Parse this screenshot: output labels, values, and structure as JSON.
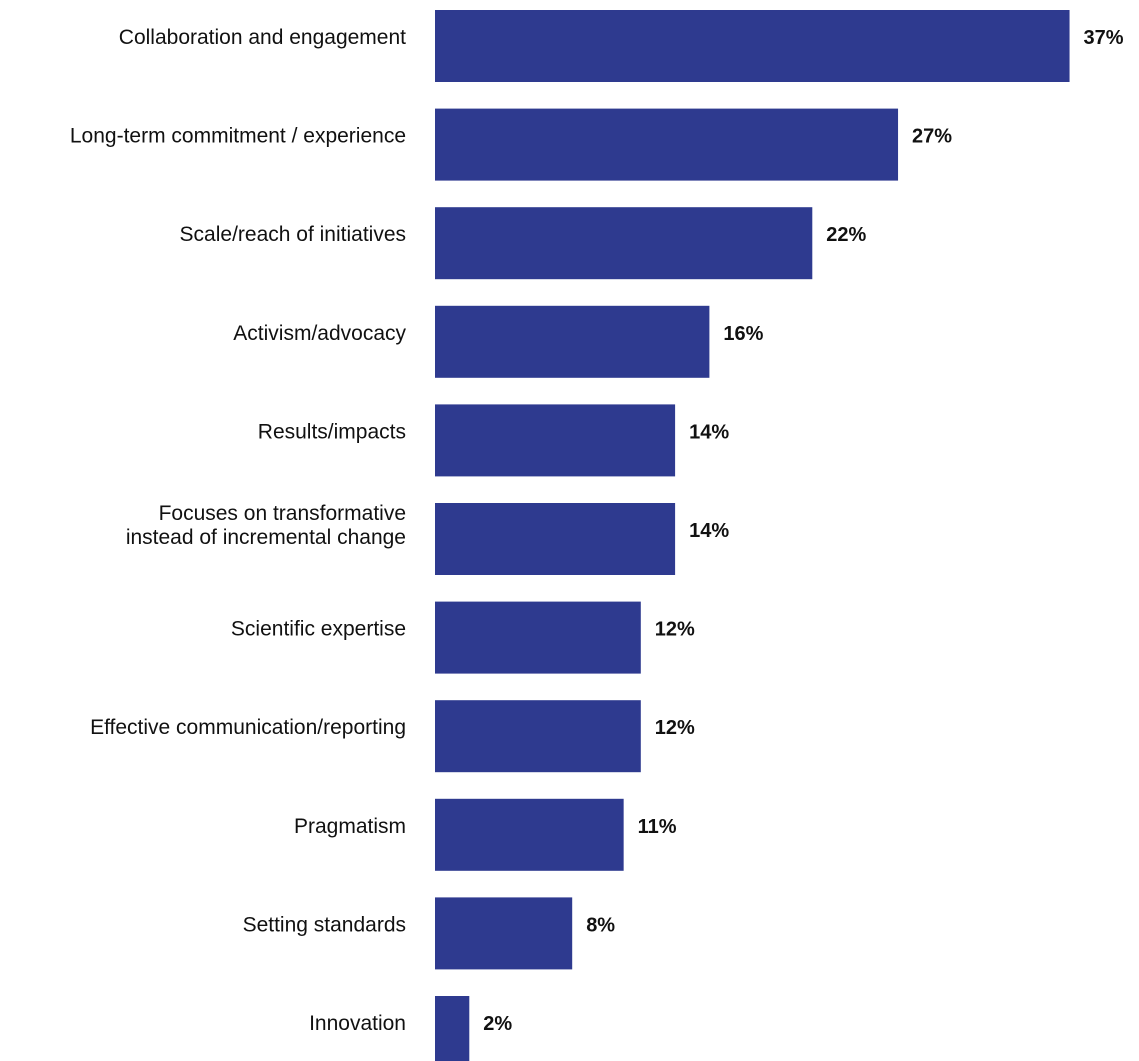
{
  "chart_data": {
    "type": "bar",
    "orientation": "horizontal",
    "categories": [
      [
        "Collaboration and engagement"
      ],
      [
        "Long-term commitment / experience"
      ],
      [
        "Scale/reach of initiatives"
      ],
      [
        "Activism/advocacy"
      ],
      [
        "Results/impacts"
      ],
      [
        "Focuses on transformative",
        "instead of incremental change"
      ],
      [
        "Scientific expertise"
      ],
      [
        "Effective communication/reporting"
      ],
      [
        "Pragmatism"
      ],
      [
        "Setting standards"
      ],
      [
        "Innovation"
      ]
    ],
    "values": [
      37,
      27,
      22,
      16,
      14,
      14,
      12,
      12,
      11,
      8,
      2
    ],
    "value_labels": [
      "37%",
      "27%",
      "22%",
      "16%",
      "14%",
      "14%",
      "12%",
      "12%",
      "11%",
      "8%",
      "2%"
    ],
    "title": "",
    "xlabel": "",
    "ylabel": "",
    "grid": false,
    "bar_color": "#2e3a8f"
  }
}
